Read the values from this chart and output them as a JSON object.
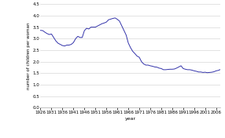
{
  "title": "",
  "xlabel": "year",
  "ylabel": "number of children per woman",
  "xlim": [
    1926,
    2008
  ],
  "ylim": [
    0.0,
    4.5
  ],
  "yticks": [
    0.0,
    0.5,
    1.0,
    1.5,
    2.0,
    2.5,
    3.0,
    3.5,
    4.0,
    4.5
  ],
  "xticks": [
    1926,
    1931,
    1936,
    1941,
    1946,
    1951,
    1956,
    1961,
    1966,
    1971,
    1976,
    1981,
    1986,
    1991,
    1996,
    2001,
    2006
  ],
  "line_color": "#3333aa",
  "background_color": "#ffffff",
  "grid_color": "#d8d8d8",
  "years": [
    1926,
    1927,
    1928,
    1929,
    1930,
    1931,
    1932,
    1933,
    1934,
    1935,
    1936,
    1937,
    1938,
    1939,
    1940,
    1941,
    1942,
    1943,
    1944,
    1945,
    1946,
    1947,
    1948,
    1949,
    1950,
    1951,
    1952,
    1953,
    1954,
    1955,
    1956,
    1957,
    1958,
    1959,
    1960,
    1961,
    1962,
    1963,
    1964,
    1965,
    1966,
    1967,
    1968,
    1969,
    1970,
    1971,
    1972,
    1973,
    1974,
    1975,
    1976,
    1977,
    1978,
    1979,
    1980,
    1981,
    1982,
    1983,
    1984,
    1985,
    1986,
    1987,
    1988,
    1989,
    1990,
    1991,
    1992,
    1993,
    1994,
    1995,
    1996,
    1997,
    1998,
    1999,
    2000,
    2001,
    2002,
    2003,
    2004,
    2005,
    2006,
    2007,
    2008
  ],
  "tfr": [
    3.36,
    3.35,
    3.28,
    3.22,
    3.18,
    3.2,
    3.05,
    2.9,
    2.8,
    2.75,
    2.7,
    2.68,
    2.72,
    2.72,
    2.75,
    2.83,
    3.0,
    3.1,
    3.05,
    3.05,
    3.35,
    3.45,
    3.42,
    3.5,
    3.5,
    3.5,
    3.55,
    3.6,
    3.65,
    3.68,
    3.72,
    3.82,
    3.85,
    3.88,
    3.9,
    3.84,
    3.76,
    3.56,
    3.36,
    3.16,
    2.81,
    2.61,
    2.45,
    2.35,
    2.24,
    2.19,
    2.0,
    1.9,
    1.85,
    1.85,
    1.82,
    1.8,
    1.77,
    1.76,
    1.72,
    1.7,
    1.65,
    1.65,
    1.66,
    1.67,
    1.67,
    1.68,
    1.72,
    1.77,
    1.82,
    1.7,
    1.67,
    1.65,
    1.65,
    1.63,
    1.6,
    1.58,
    1.55,
    1.55,
    1.53,
    1.54,
    1.52,
    1.53,
    1.54,
    1.56,
    1.6,
    1.62,
    1.66
  ],
  "tick_fontsize": 4.0,
  "label_fontsize": 4.5,
  "linewidth": 0.7
}
